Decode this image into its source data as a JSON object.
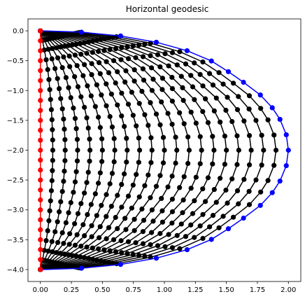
{
  "chart_data": {
    "type": "line",
    "title": "Horizontal geodesic",
    "xlabel": "",
    "ylabel": "",
    "xlim": [
      -0.1,
      2.1
    ],
    "ylim": [
      -4.2,
      0.2
    ],
    "grid": false,
    "xticks": [
      0.0,
      0.25,
      0.5,
      0.75,
      1.0,
      1.25,
      1.5,
      1.75,
      2.0
    ],
    "xtick_labels": [
      "0.00",
      "0.25",
      "0.50",
      "0.75",
      "1.00",
      "1.25",
      "1.50",
      "1.75",
      "2.00"
    ],
    "yticks": [
      0.0,
      -0.5,
      -1.0,
      -1.5,
      -2.0,
      -2.5,
      -3.0,
      -3.5,
      -4.0
    ],
    "ytick_labels": [
      "0.0",
      "−0.5",
      "−1.0",
      "−1.5",
      "−2.0",
      "−2.5",
      "−3.0",
      "−3.5",
      "−4.0"
    ],
    "curve": {
      "shape": "semi-ellipse",
      "x_max": 2.0,
      "y_top": 0.0,
      "y_bottom": -4.0,
      "points_per_curve": 25,
      "intermediate_curves": 19
    },
    "series": [
      {
        "role": "start",
        "color": "#ff0000",
        "x": [
          0,
          0,
          0,
          0,
          0,
          0,
          0,
          0,
          0,
          0,
          0,
          0,
          0,
          0,
          0,
          0,
          0,
          0,
          0,
          0,
          0,
          0,
          0,
          0,
          0
        ],
        "y": [
          0.0,
          -0.166,
          -0.333,
          -0.5,
          -0.666,
          -0.833,
          -1.0,
          -1.166,
          -1.333,
          -1.5,
          -1.666,
          -1.833,
          -2.0,
          -2.166,
          -2.333,
          -2.5,
          -2.666,
          -2.833,
          -3.0,
          -3.166,
          -3.333,
          -3.5,
          -3.666,
          -3.833,
          -4.0
        ]
      },
      {
        "role": "end",
        "color": "#0000ff",
        "x": [
          0.0,
          0.331,
          0.647,
          0.935,
          1.183,
          1.379,
          1.516,
          1.638,
          1.774,
          1.87,
          1.932,
          1.983,
          2.0,
          1.983,
          1.932,
          1.87,
          1.774,
          1.638,
          1.516,
          1.379,
          1.183,
          0.935,
          0.647,
          0.331,
          0.0
        ],
        "y": [
          0.0,
          -0.022,
          -0.086,
          -0.191,
          -0.333,
          -0.505,
          -0.684,
          -0.862,
          -1.075,
          -1.289,
          -1.483,
          -1.741,
          -2.0,
          -2.259,
          -2.517,
          -2.711,
          -2.925,
          -3.138,
          -3.316,
          -3.495,
          -3.667,
          -3.809,
          -3.914,
          -3.978,
          -4.0
        ]
      },
      {
        "role": "intermediate",
        "color": "#000000"
      }
    ]
  },
  "colors": {
    "start": "#ff0000",
    "end": "#0000ff",
    "intermediate": "#000000",
    "axes": "#000000",
    "background": "#ffffff"
  }
}
